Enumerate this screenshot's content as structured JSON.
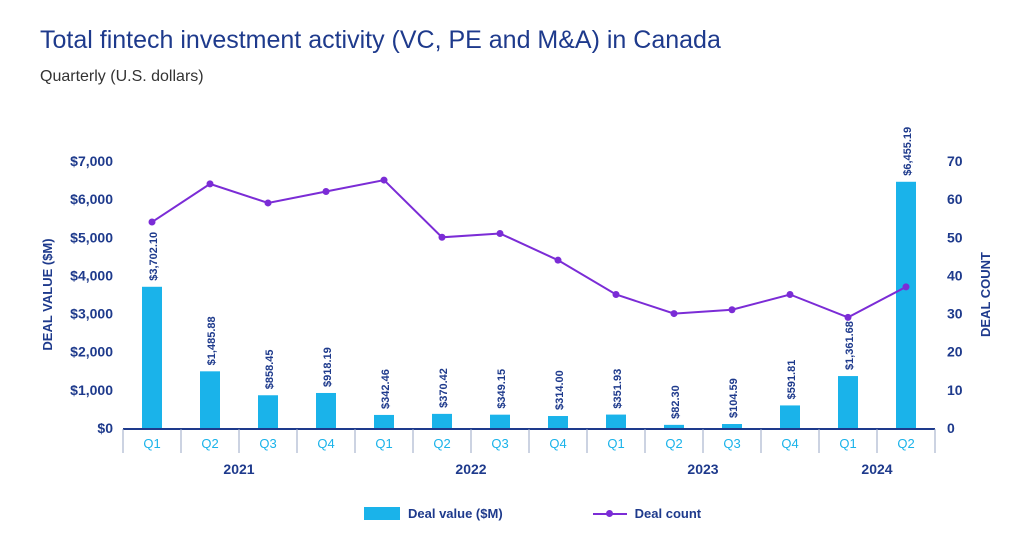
{
  "title": "Total fintech investment activity (VC, PE and M&A) in Canada",
  "subtitle": "Quarterly (U.S. dollars)",
  "colors": {
    "bar": "#1ab3ea",
    "line": "#7b2cd6",
    "text": "#1e3a8c",
    "axis": "#1e3a8c",
    "quarter_label": "#1ab3ea"
  },
  "chart_data": {
    "type": "bar",
    "categories": [
      "Q1",
      "Q2",
      "Q3",
      "Q4",
      "Q1",
      "Q2",
      "Q3",
      "Q4",
      "Q1",
      "Q2",
      "Q3",
      "Q4",
      "Q1",
      "Q2"
    ],
    "years": [
      {
        "label": "2021",
        "quarters": 4
      },
      {
        "label": "2022",
        "quarters": 4
      },
      {
        "label": "2023",
        "quarters": 4
      },
      {
        "label": "2024",
        "quarters": 2
      }
    ],
    "series": [
      {
        "name": "Deal value ($M)",
        "type": "bar",
        "axis": "left",
        "values": [
          3702.1,
          1485.88,
          858.45,
          918.19,
          342.46,
          370.42,
          349.15,
          314.0,
          351.93,
          82.3,
          104.59,
          591.81,
          1361.68,
          6455.19
        ],
        "labels": [
          "$3,702.10",
          "$1,485.88",
          "$858.45",
          "$918.19",
          "$342.46",
          "$370.42",
          "$349.15",
          "$314.00",
          "$351.93",
          "$82.30",
          "$104.59",
          "$591.81",
          "$1,361.68",
          "$6,455.19"
        ]
      },
      {
        "name": "Deal count",
        "type": "line",
        "axis": "right",
        "values": [
          54,
          64,
          59,
          62,
          65,
          50,
          51,
          44,
          35,
          30,
          31,
          35,
          29,
          37
        ]
      }
    ],
    "ylabel": "DEAL VALUE ($M)",
    "y2label": "DEAL COUNT",
    "ylim": [
      0,
      7000
    ],
    "y2lim": [
      0,
      70
    ],
    "yticks": [
      "$0",
      "$1,000",
      "$2,000",
      "$3,000",
      "$4,000",
      "$5,000",
      "$6,000",
      "$7,000"
    ],
    "y2ticks": [
      "0",
      "10",
      "20",
      "30",
      "40",
      "50",
      "60",
      "70"
    ],
    "grid": false,
    "legend_position": "bottom"
  }
}
